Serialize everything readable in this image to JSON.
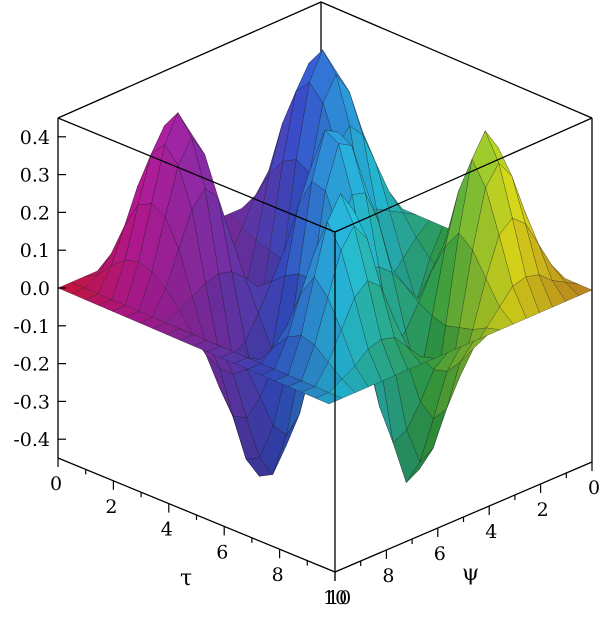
{
  "chart_data": {
    "type": "surface3d",
    "title": "",
    "x_axis": {
      "label": "τ",
      "range": [
        0,
        10
      ],
      "ticks": [
        0,
        2,
        4,
        6,
        8,
        10
      ]
    },
    "y_axis": {
      "label": "ψ",
      "range": [
        0,
        10
      ],
      "ticks": [
        0,
        2,
        4,
        6,
        8,
        10
      ]
    },
    "z_axis": {
      "label": "",
      "range": [
        -0.45,
        0.45
      ],
      "ticks": [
        0.4,
        0.3,
        0.2,
        0.1,
        0.0,
        -0.1,
        -0.2,
        -0.3,
        -0.4
      ],
      "tick_labels": [
        "0.4",
        "0.3",
        "0.2",
        "0.1",
        "0.0",
        "-0.1",
        "-0.2",
        "-0.3",
        "-0.4"
      ]
    },
    "surface": {
      "peaks": 5,
      "troughs": 4,
      "grid_x": [
        0,
        0.5,
        1,
        1.5,
        2,
        2.5,
        3,
        3.5,
        4,
        4.5,
        5,
        5.5,
        6,
        6.5,
        7,
        7.5,
        8,
        8.5,
        9,
        9.5,
        10
      ],
      "grid_y": [
        0,
        0.5,
        1,
        1.5,
        2,
        2.5,
        3,
        3.5,
        4,
        4.5,
        5,
        5.5,
        6,
        6.5,
        7,
        7.5,
        8,
        8.5,
        9,
        9.5,
        10
      ],
      "z_rows": [
        [
          0.0,
          0.0,
          0.0,
          0.0,
          0.0,
          0.0,
          0.0,
          0.0,
          0.0,
          0.0,
          0.0,
          0.0,
          0.0,
          0.0,
          0.0,
          0.0,
          0.0,
          0.0,
          0.0,
          0.0,
          0.0
        ],
        [
          0.0,
          0.02,
          0.06,
          0.1,
          0.12,
          0.1,
          0.05,
          -0.02,
          -0.08,
          -0.11,
          -0.11,
          -0.08,
          -0.02,
          0.05,
          0.1,
          0.12,
          0.1,
          0.06,
          0.02,
          0.0,
          0.0
        ],
        [
          0.0,
          0.06,
          0.15,
          0.24,
          0.28,
          0.24,
          0.12,
          -0.04,
          -0.18,
          -0.27,
          -0.28,
          -0.2,
          -0.05,
          0.12,
          0.24,
          0.28,
          0.24,
          0.15,
          0.06,
          0.0,
          0.0
        ],
        [
          0.0,
          0.09,
          0.22,
          0.34,
          0.4,
          0.34,
          0.17,
          -0.05,
          -0.26,
          -0.38,
          -0.4,
          -0.29,
          -0.07,
          0.17,
          0.34,
          0.4,
          0.34,
          0.22,
          0.09,
          0.0,
          0.0
        ],
        [
          0.0,
          0.1,
          0.24,
          0.38,
          0.45,
          0.38,
          0.19,
          -0.06,
          -0.29,
          -0.42,
          -0.45,
          -0.32,
          -0.08,
          0.19,
          0.38,
          0.45,
          0.38,
          0.24,
          0.1,
          0.0,
          0.0
        ],
        [
          0.0,
          0.09,
          0.22,
          0.34,
          0.4,
          0.34,
          0.17,
          -0.05,
          -0.26,
          -0.38,
          -0.4,
          -0.29,
          -0.07,
          0.17,
          0.34,
          0.4,
          0.34,
          0.22,
          0.09,
          0.0,
          0.0
        ],
        [
          0.0,
          0.06,
          0.15,
          0.24,
          0.28,
          0.24,
          0.12,
          -0.04,
          -0.18,
          -0.27,
          -0.28,
          -0.2,
          -0.05,
          0.12,
          0.24,
          0.28,
          0.24,
          0.15,
          0.06,
          0.0,
          0.0
        ],
        [
          0.0,
          0.02,
          0.04,
          0.06,
          0.07,
          0.06,
          0.03,
          -0.01,
          -0.05,
          -0.07,
          -0.07,
          -0.05,
          -0.01,
          0.03,
          0.06,
          0.07,
          0.06,
          0.04,
          0.02,
          0.0,
          0.0
        ],
        [
          0.0,
          -0.03,
          -0.07,
          -0.11,
          -0.13,
          -0.11,
          -0.05,
          0.02,
          0.08,
          0.12,
          0.13,
          0.09,
          0.02,
          -0.05,
          -0.11,
          -0.13,
          -0.11,
          -0.07,
          -0.03,
          0.0,
          0.0
        ],
        [
          0.0,
          -0.07,
          -0.17,
          -0.26,
          -0.31,
          -0.26,
          -0.13,
          0.04,
          0.2,
          0.29,
          0.31,
          0.22,
          0.05,
          -0.13,
          -0.26,
          -0.31,
          -0.26,
          -0.17,
          -0.07,
          0.0,
          0.0
        ],
        [
          0.0,
          -0.09,
          -0.23,
          -0.36,
          -0.42,
          -0.36,
          -0.18,
          0.05,
          0.27,
          0.4,
          0.42,
          0.3,
          0.07,
          -0.18,
          -0.36,
          -0.42,
          -0.36,
          -0.23,
          -0.09,
          0.0,
          0.0
        ],
        [
          0.0,
          -0.09,
          -0.22,
          -0.34,
          -0.4,
          -0.34,
          -0.17,
          0.05,
          0.26,
          0.38,
          0.4,
          0.29,
          0.07,
          -0.17,
          -0.34,
          -0.4,
          -0.34,
          -0.22,
          -0.09,
          0.0,
          0.0
        ],
        [
          0.0,
          -0.06,
          -0.15,
          -0.24,
          -0.28,
          -0.24,
          -0.12,
          0.04,
          0.18,
          0.27,
          0.28,
          0.2,
          0.05,
          -0.12,
          -0.24,
          -0.28,
          -0.24,
          -0.15,
          -0.06,
          0.0,
          0.0
        ],
        [
          0.0,
          -0.02,
          -0.05,
          -0.08,
          -0.09,
          -0.08,
          -0.04,
          0.01,
          0.06,
          0.09,
          0.09,
          0.07,
          0.02,
          -0.04,
          -0.08,
          -0.09,
          -0.08,
          -0.05,
          -0.02,
          0.0,
          0.0
        ],
        [
          0.0,
          0.03,
          0.07,
          0.11,
          0.13,
          0.11,
          0.05,
          -0.02,
          -0.08,
          -0.12,
          -0.13,
          -0.09,
          -0.02,
          0.05,
          0.11,
          0.13,
          0.11,
          0.07,
          0.03,
          0.0,
          0.0
        ],
        [
          0.0,
          0.07,
          0.17,
          0.26,
          0.31,
          0.26,
          0.13,
          -0.04,
          -0.2,
          -0.29,
          -0.31,
          -0.22,
          -0.05,
          0.13,
          0.26,
          0.31,
          0.26,
          0.17,
          0.07,
          0.0,
          0.0
        ],
        [
          0.0,
          0.09,
          0.23,
          0.36,
          0.42,
          0.36,
          0.18,
          -0.05,
          -0.27,
          -0.4,
          -0.42,
          -0.3,
          -0.07,
          0.18,
          0.36,
          0.42,
          0.36,
          0.23,
          0.09,
          0.0,
          0.0
        ],
        [
          0.0,
          0.08,
          0.19,
          0.3,
          0.35,
          0.3,
          0.15,
          -0.04,
          -0.23,
          -0.33,
          -0.35,
          -0.25,
          -0.06,
          0.15,
          0.3,
          0.35,
          0.3,
          0.19,
          0.08,
          0.0,
          0.0
        ],
        [
          0.0,
          0.05,
          0.12,
          0.19,
          0.22,
          0.19,
          0.09,
          -0.03,
          -0.14,
          -0.21,
          -0.22,
          -0.16,
          -0.04,
          0.09,
          0.19,
          0.22,
          0.19,
          0.12,
          0.05,
          0.0,
          0.0
        ],
        [
          0.0,
          0.02,
          0.04,
          0.07,
          0.08,
          0.07,
          0.03,
          -0.01,
          -0.05,
          -0.07,
          -0.08,
          -0.06,
          -0.01,
          0.03,
          0.07,
          0.08,
          0.07,
          0.04,
          0.02,
          0.0,
          0.0
        ],
        [
          0.0,
          0.0,
          0.0,
          0.0,
          0.0,
          0.0,
          0.0,
          0.0,
          0.0,
          0.0,
          0.0,
          0.0,
          0.0,
          0.0,
          0.0,
          0.0,
          0.0,
          0.0,
          0.0,
          0.0,
          0.0
        ]
      ]
    },
    "colors": {
      "magenta": "#c2199a",
      "red": "#e8173a",
      "purple": "#8a2fb0",
      "blue": "#3a53d6",
      "cyan": "#27c8e6",
      "green": "#37b04a",
      "yellow": "#e8e61c",
      "orange": "#d58a22",
      "mesh": "#1a1a1a",
      "box": "#000000"
    }
  }
}
